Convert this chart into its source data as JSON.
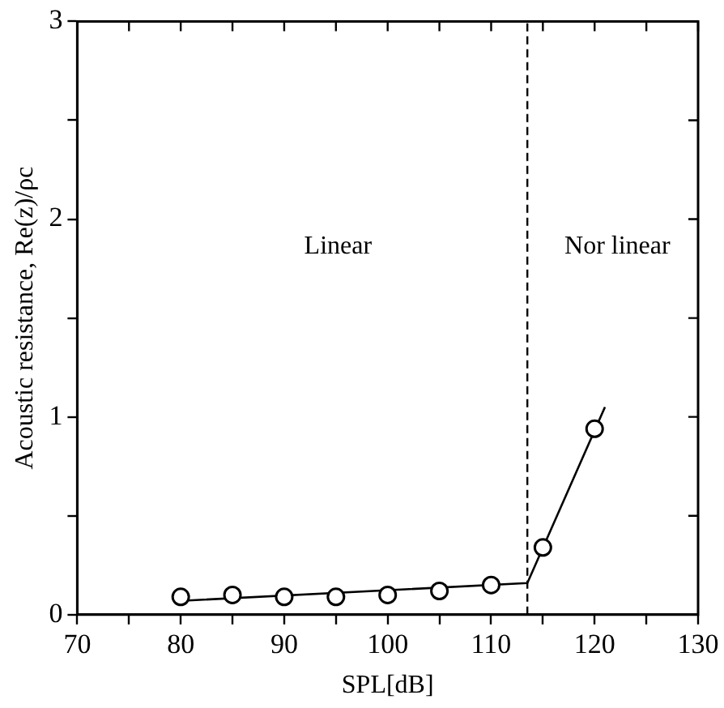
{
  "chart_data": {
    "type": "scatter",
    "xlabel": "SPL[dB]",
    "ylabel": "Acoustic resistance, Re(z)/ρc",
    "xlim": [
      70,
      130
    ],
    "xticks": [
      70,
      {
        "value": 75,
        "label": null
      },
      80,
      {
        "value": 85,
        "label": null
      },
      90,
      {
        "value": 95,
        "label": null
      },
      100,
      {
        "value": 105,
        "label": null
      },
      110,
      {
        "value": 115,
        "label": null
      },
      120,
      {
        "value": 125,
        "label": null
      },
      130
    ],
    "ylim": [
      0,
      3
    ],
    "yticks": [
      0,
      {
        "value": 0.5,
        "label": null
      },
      1,
      {
        "value": 1.5,
        "label": null
      },
      2,
      {
        "value": 2.5,
        "label": null
      },
      3
    ],
    "grid": false,
    "legend": false,
    "series": [
      {
        "color": "#000000",
        "marker": "circle",
        "x": [
          80,
          85,
          90,
          95,
          100,
          105,
          110,
          115,
          120
        ],
        "values": [
          0.09,
          0.1,
          0.09,
          0.09,
          0.1,
          0.12,
          0.15,
          0.34,
          0.94
        ]
      },
      {
        "type": "line",
        "color": "#000000",
        "marker": "none",
        "line_style": "solid",
        "x": [
          80,
          113.5,
          121
        ],
        "values": [
          0.07,
          0.16,
          1.05
        ]
      }
    ],
    "ref_lines": [
      {
        "axis": "x",
        "value": 113.5,
        "line_style": "dashed",
        "color": "#000000"
      }
    ],
    "annotations": [
      "Linear",
      "Nor linear"
    ]
  }
}
